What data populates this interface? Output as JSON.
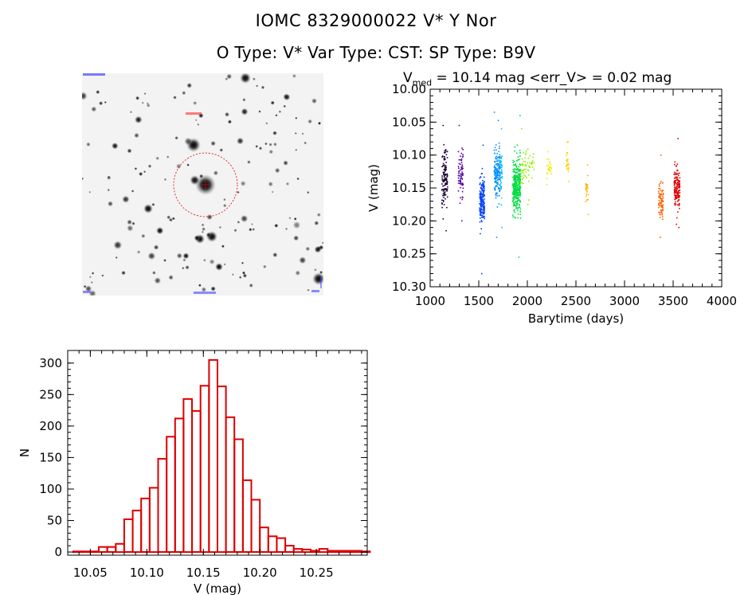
{
  "header": {
    "title": "IOMC 8329000022    V* Y Nor",
    "subtitle": "O Type: V*  Var Type: CST:  SP Type: B9V"
  },
  "lightcurve_title": {
    "prefix": "V",
    "sub": "med",
    "rest": " = 10.14 mag <err_V> = 0.02 mag"
  },
  "chart_data": [
    {
      "type": "scatter",
      "title": "V_med = 10.14 mag <err_V> = 0.02 mag",
      "xlabel": "Barytime (days)",
      "ylabel": "V (mag)",
      "xlim": [
        1000,
        4000
      ],
      "ylim": [
        10.3,
        10.0
      ],
      "xticks": [
        1000,
        1500,
        2000,
        2500,
        3000,
        3500,
        4000
      ],
      "yticks": [
        10.0,
        10.05,
        10.1,
        10.15,
        10.2,
        10.25,
        10.3
      ],
      "series": [
        {
          "name": "c1",
          "color": "#1a0033",
          "x_range": [
            1120,
            1180
          ],
          "center": 10.135,
          "spread": 0.035,
          "n": 130,
          "min": 10.055,
          "max": 10.215
        },
        {
          "name": "c2",
          "color": "#5500a0",
          "x_range": [
            1290,
            1340
          ],
          "center": 10.13,
          "spread": 0.035,
          "n": 70,
          "min": 10.055,
          "max": 10.2
        },
        {
          "name": "c3",
          "color": "#0040ff",
          "x_range": [
            1510,
            1560
          ],
          "center": 10.17,
          "spread": 0.03,
          "n": 180,
          "min": 10.085,
          "max": 10.28
        },
        {
          "name": "c4",
          "color": "#0090ff",
          "x_range": [
            1660,
            1720
          ],
          "center": 10.125,
          "spread": 0.035,
          "n": 180,
          "min": 10.035,
          "max": 10.225
        },
        {
          "name": "c5",
          "color": "#00c8ff",
          "x_range": [
            1722,
            1740
          ],
          "center": 10.13,
          "spread": 0.03,
          "n": 40,
          "min": 10.06,
          "max": 10.21
        },
        {
          "name": "c6",
          "color": "#00dd40",
          "x_range": [
            1850,
            1930
          ],
          "center": 10.15,
          "spread": 0.035,
          "n": 360,
          "min": 10.04,
          "max": 10.255
        },
        {
          "name": "c7",
          "color": "#90ee00",
          "x_range": [
            1930,
            2070
          ],
          "center": 10.12,
          "spread": 0.025,
          "n": 60,
          "min": 10.06,
          "max": 10.175
        },
        {
          "name": "c8",
          "color": "#eeee00",
          "x_range": [
            2200,
            2250
          ],
          "center": 10.12,
          "spread": 0.015,
          "n": 25,
          "min": 10.095,
          "max": 10.145
        },
        {
          "name": "c9",
          "color": "#ffd000",
          "x_range": [
            2400,
            2430
          ],
          "center": 10.115,
          "spread": 0.02,
          "n": 25,
          "min": 10.08,
          "max": 10.14
        },
        {
          "name": "c10",
          "color": "#ffb000",
          "x_range": [
            2600,
            2630
          ],
          "center": 10.15,
          "spread": 0.02,
          "n": 25,
          "min": 10.115,
          "max": 10.19
        },
        {
          "name": "c11",
          "color": "#ff6000",
          "x_range": [
            3350,
            3400
          ],
          "center": 10.17,
          "spread": 0.025,
          "n": 80,
          "min": 10.1,
          "max": 10.225
        },
        {
          "name": "c12",
          "color": "#e00000",
          "x_range": [
            3510,
            3570
          ],
          "center": 10.15,
          "spread": 0.03,
          "n": 150,
          "min": 10.075,
          "max": 10.21
        }
      ]
    },
    {
      "type": "bar",
      "title": "",
      "xlabel": "V (mag)",
      "ylabel": "N",
      "xlim": [
        10.03,
        10.295
      ],
      "ylim": [
        -5,
        320
      ],
      "xticks": [
        10.05,
        10.1,
        10.15,
        10.2,
        10.25
      ],
      "yticks": [
        0,
        50,
        100,
        150,
        200,
        250,
        300
      ],
      "bin_start": 10.035,
      "bin_width": 0.0075,
      "values": [
        1,
        1,
        1,
        8,
        8,
        13,
        52,
        66,
        85,
        102,
        148,
        183,
        212,
        243,
        224,
        264,
        305,
        263,
        214,
        179,
        114,
        83,
        39,
        25,
        22,
        10,
        5,
        4,
        2,
        5,
        2,
        2,
        2,
        2,
        1
      ],
      "color": "#dd0000"
    }
  ]
}
